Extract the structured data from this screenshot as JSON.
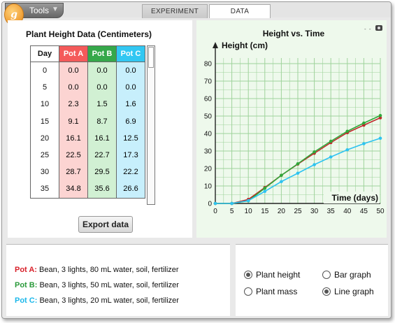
{
  "toolbar": {
    "tools_label": "Tools",
    "tabs": [
      "EXPERIMENT",
      "DATA"
    ],
    "active_tab": "DATA"
  },
  "table": {
    "title": "Plant Height Data (Centimeters)",
    "headers": [
      "Day",
      "Pot A",
      "Pot B",
      "Pot C"
    ],
    "rows": [
      [
        "0",
        "0.0",
        "0.0",
        "0.0"
      ],
      [
        "5",
        "0.0",
        "0.0",
        "0.0"
      ],
      [
        "10",
        "2.3",
        "1.5",
        "1.6"
      ],
      [
        "15",
        "9.1",
        "8.7",
        "6.9"
      ],
      [
        "20",
        "16.1",
        "16.1",
        "12.5"
      ],
      [
        "25",
        "22.5",
        "22.7",
        "17.3"
      ],
      [
        "30",
        "28.7",
        "29.5",
        "22.2"
      ],
      [
        "35",
        "34.8",
        "35.6",
        "26.6"
      ]
    ],
    "export_label": "Export data"
  },
  "colors": {
    "pot_a": "#d8202a",
    "pot_b": "#2a9a3a",
    "pot_c": "#1bb7ea"
  },
  "chart_data": {
    "type": "line",
    "title": "Height vs. Time",
    "ylabel": "Height (cm)",
    "xlabel": "Time (days)",
    "xlim": [
      0,
      50
    ],
    "ylim": [
      0,
      80
    ],
    "xticks": [
      0,
      5,
      10,
      15,
      20,
      25,
      30,
      35,
      40,
      45,
      50
    ],
    "yticks": [
      0,
      10,
      20,
      30,
      40,
      50,
      60,
      70,
      80
    ],
    "x": [
      0,
      5,
      10,
      15,
      20,
      25,
      30,
      35,
      40,
      45,
      50
    ],
    "grid": true,
    "series": [
      {
        "key": "pot_a",
        "color": "#c0282a",
        "values": [
          0,
          0,
          2.3,
          9.1,
          16.1,
          22.5,
          28.7,
          34.8,
          40.5,
          44.8,
          49.0
        ]
      },
      {
        "key": "pot_b",
        "color": "#2fa83a",
        "values": [
          0,
          0,
          1.5,
          8.7,
          16.1,
          22.7,
          29.5,
          35.6,
          41.3,
          46.0,
          50.3
        ]
      },
      {
        "key": "pot_c",
        "color": "#2ec3f0",
        "values": [
          0,
          0,
          1.6,
          6.9,
          12.5,
          17.3,
          22.2,
          26.6,
          30.7,
          34.2,
          37.3
        ]
      }
    ]
  },
  "legend": [
    {
      "pot": "Pot A:",
      "text": "Bean, 3 lights, 80 mL water, soil, fertilizer"
    },
    {
      "pot": "Pot B:",
      "text": "Bean, 3 lights, 50 mL water, soil, fertilizer"
    },
    {
      "pot": "Pot C:",
      "text": "Bean, 3 lights, 20 mL water, soil, fertilizer"
    }
  ],
  "options": {
    "plant_height": "Plant height",
    "plant_mass": "Plant mass",
    "bar_graph": "Bar graph",
    "line_graph": "Line graph",
    "selected_measure": "Plant height",
    "selected_graph": "Line graph"
  }
}
